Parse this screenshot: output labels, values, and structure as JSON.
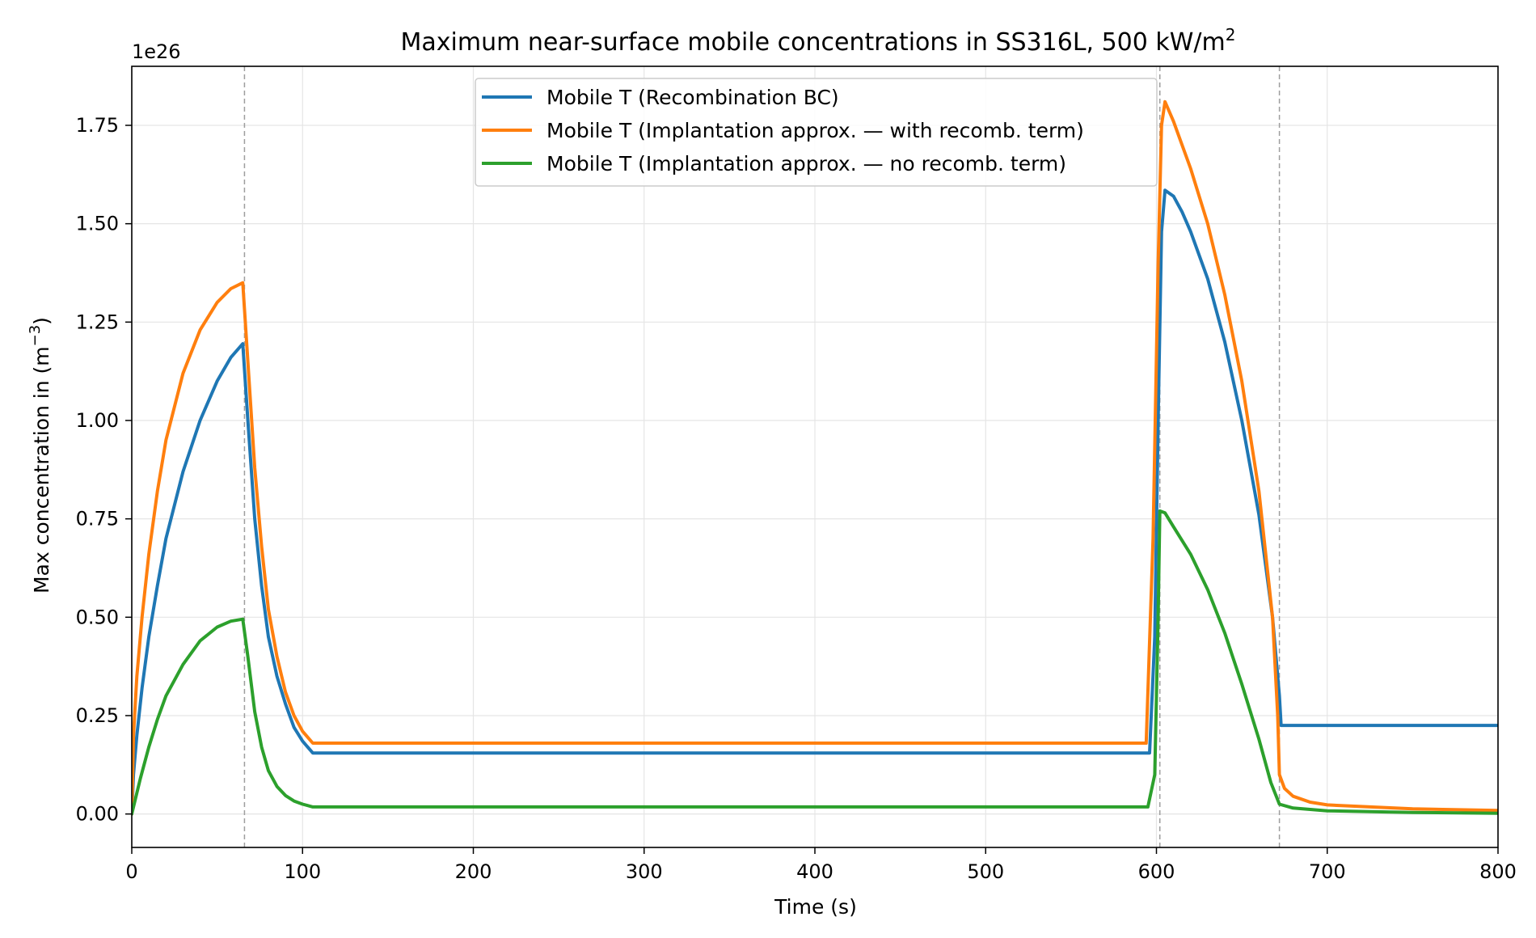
{
  "chart_data": {
    "type": "line",
    "title": "Maximum near-surface mobile concentrations in SS316L, 500 kW/m",
    "title_superscript": "2",
    "xlabel": "Time (s)",
    "ylabel": "Max concentration in (m",
    "ylabel_superscript": "−3",
    "ylabel_suffix": ")",
    "offset_text": "1e26",
    "xlim": [
      0,
      800
    ],
    "ylim": [
      -0.085,
      1.9
    ],
    "x_ticks": [
      0,
      100,
      200,
      300,
      400,
      500,
      600,
      700,
      800
    ],
    "x_tick_labels": [
      "0",
      "100",
      "200",
      "300",
      "400",
      "500",
      "600",
      "700",
      "800"
    ],
    "y_ticks": [
      0.0,
      0.25,
      0.5,
      0.75,
      1.0,
      1.25,
      1.5,
      1.75
    ],
    "y_tick_labels": [
      "0.00",
      "0.25",
      "0.50",
      "0.75",
      "1.00",
      "1.25",
      "1.50",
      "1.75"
    ],
    "grid": true,
    "legend_position": "top-center",
    "vlines": [
      66,
      602,
      672
    ],
    "series": [
      {
        "name": "Mobile T (Recombination BC)",
        "color": "#1f77b4",
        "points": [
          [
            0,
            0.0
          ],
          [
            1,
            0.1
          ],
          [
            3,
            0.2
          ],
          [
            6,
            0.32
          ],
          [
            10,
            0.45
          ],
          [
            15,
            0.58
          ],
          [
            20,
            0.7
          ],
          [
            30,
            0.87
          ],
          [
            40,
            1.0
          ],
          [
            50,
            1.1
          ],
          [
            58,
            1.16
          ],
          [
            65,
            1.195
          ],
          [
            68,
            1.0
          ],
          [
            72,
            0.75
          ],
          [
            76,
            0.58
          ],
          [
            80,
            0.45
          ],
          [
            85,
            0.35
          ],
          [
            90,
            0.28
          ],
          [
            95,
            0.22
          ],
          [
            100,
            0.185
          ],
          [
            106,
            0.155
          ],
          [
            200,
            0.155
          ],
          [
            300,
            0.155
          ],
          [
            400,
            0.155
          ],
          [
            500,
            0.155
          ],
          [
            596,
            0.155
          ],
          [
            599,
            0.45
          ],
          [
            601,
            1.0
          ],
          [
            603,
            1.48
          ],
          [
            605,
            1.585
          ],
          [
            610,
            1.57
          ],
          [
            615,
            1.53
          ],
          [
            620,
            1.48
          ],
          [
            630,
            1.36
          ],
          [
            640,
            1.2
          ],
          [
            650,
            1.0
          ],
          [
            660,
            0.76
          ],
          [
            668,
            0.5
          ],
          [
            672,
            0.3
          ],
          [
            673,
            0.225
          ],
          [
            680,
            0.225
          ],
          [
            700,
            0.225
          ],
          [
            750,
            0.225
          ],
          [
            800,
            0.225
          ]
        ]
      },
      {
        "name": "Mobile T (Implantation approx. — with recomb. term)",
        "color": "#ff7f0e",
        "points": [
          [
            0,
            0.0
          ],
          [
            1,
            0.2
          ],
          [
            3,
            0.35
          ],
          [
            6,
            0.5
          ],
          [
            10,
            0.66
          ],
          [
            15,
            0.82
          ],
          [
            20,
            0.95
          ],
          [
            30,
            1.12
          ],
          [
            40,
            1.23
          ],
          [
            50,
            1.3
          ],
          [
            58,
            1.335
          ],
          [
            65,
            1.35
          ],
          [
            68,
            1.15
          ],
          [
            72,
            0.88
          ],
          [
            76,
            0.68
          ],
          [
            80,
            0.52
          ],
          [
            85,
            0.4
          ],
          [
            90,
            0.31
          ],
          [
            95,
            0.25
          ],
          [
            100,
            0.21
          ],
          [
            106,
            0.18
          ],
          [
            200,
            0.18
          ],
          [
            300,
            0.18
          ],
          [
            400,
            0.18
          ],
          [
            500,
            0.18
          ],
          [
            594,
            0.18
          ],
          [
            598,
            0.7
          ],
          [
            601,
            1.4
          ],
          [
            603,
            1.75
          ],
          [
            605,
            1.81
          ],
          [
            610,
            1.76
          ],
          [
            615,
            1.7
          ],
          [
            620,
            1.64
          ],
          [
            630,
            1.5
          ],
          [
            640,
            1.32
          ],
          [
            650,
            1.1
          ],
          [
            660,
            0.82
          ],
          [
            668,
            0.5
          ],
          [
            671,
            0.25
          ],
          [
            672,
            0.1
          ],
          [
            675,
            0.065
          ],
          [
            680,
            0.045
          ],
          [
            690,
            0.03
          ],
          [
            700,
            0.023
          ],
          [
            750,
            0.013
          ],
          [
            800,
            0.009
          ]
        ]
      },
      {
        "name": "Mobile T (Implantation approx. — no recomb. term)",
        "color": "#2ca02c",
        "points": [
          [
            0,
            0.0
          ],
          [
            5,
            0.09
          ],
          [
            10,
            0.17
          ],
          [
            15,
            0.24
          ],
          [
            20,
            0.3
          ],
          [
            30,
            0.38
          ],
          [
            40,
            0.44
          ],
          [
            50,
            0.475
          ],
          [
            58,
            0.49
          ],
          [
            65,
            0.495
          ],
          [
            68,
            0.4
          ],
          [
            72,
            0.26
          ],
          [
            76,
            0.17
          ],
          [
            80,
            0.11
          ],
          [
            85,
            0.07
          ],
          [
            90,
            0.047
          ],
          [
            95,
            0.033
          ],
          [
            100,
            0.025
          ],
          [
            106,
            0.018
          ],
          [
            200,
            0.018
          ],
          [
            300,
            0.018
          ],
          [
            400,
            0.018
          ],
          [
            500,
            0.018
          ],
          [
            595,
            0.018
          ],
          [
            599,
            0.1
          ],
          [
            601,
            0.5
          ],
          [
            602,
            0.77
          ],
          [
            605,
            0.765
          ],
          [
            610,
            0.73
          ],
          [
            620,
            0.66
          ],
          [
            630,
            0.57
          ],
          [
            640,
            0.46
          ],
          [
            650,
            0.33
          ],
          [
            660,
            0.19
          ],
          [
            667,
            0.08
          ],
          [
            672,
            0.025
          ],
          [
            680,
            0.015
          ],
          [
            700,
            0.008
          ],
          [
            750,
            0.004
          ],
          [
            800,
            0.002
          ]
        ]
      }
    ]
  }
}
